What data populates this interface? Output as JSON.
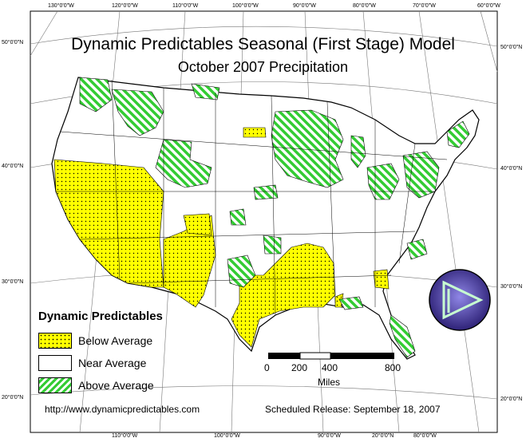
{
  "title": "Dynamic Predictables Seasonal (First Stage) Model",
  "subtitle": "October 2007 Precipitation",
  "graticule": {
    "top_longitudes": [
      "130°0'0\"W",
      "120°0'0\"W",
      "110°0'0\"W",
      "100°0'0\"W",
      "90°0'0\"W",
      "80°0'0\"W",
      "70°0'0\"W",
      "60°0'0\"W"
    ],
    "bottom_longitudes": [
      "110°0'0\"W",
      "100°0'0\"W",
      "90°0'0\"W",
      "80°0'0\"W",
      "20°0'0\"N"
    ],
    "left_latitudes": [
      "50°0'0\"N",
      "40°0'0\"N",
      "30°0'0\"N",
      "20°0'0\"N"
    ],
    "right_latitudes": [
      "50°0'0\"N",
      "40°0'0\"N",
      "30°0'0\"N",
      "20°0'0\"N"
    ]
  },
  "legend": {
    "title": "Dynamic Predictables",
    "items": [
      {
        "label": "Below Average",
        "color": "#ffff00",
        "pattern": "dots"
      },
      {
        "label": "Near Average",
        "color": "#ffffff",
        "pattern": "none"
      },
      {
        "label": "Above Average",
        "color": "#33cc33",
        "pattern": "hatch"
      }
    ]
  },
  "scale_bar": {
    "ticks": [
      "0",
      "200",
      "400",
      "800"
    ],
    "unit": "Miles"
  },
  "footer": {
    "url": "http://www.dynamicpredictables.com",
    "release": "Scheduled Release: September 18, 2007"
  },
  "colors": {
    "below": "#ffff00",
    "near": "#ffffff",
    "above": "#33cc33",
    "logo_fill": "#4b3fa6"
  }
}
